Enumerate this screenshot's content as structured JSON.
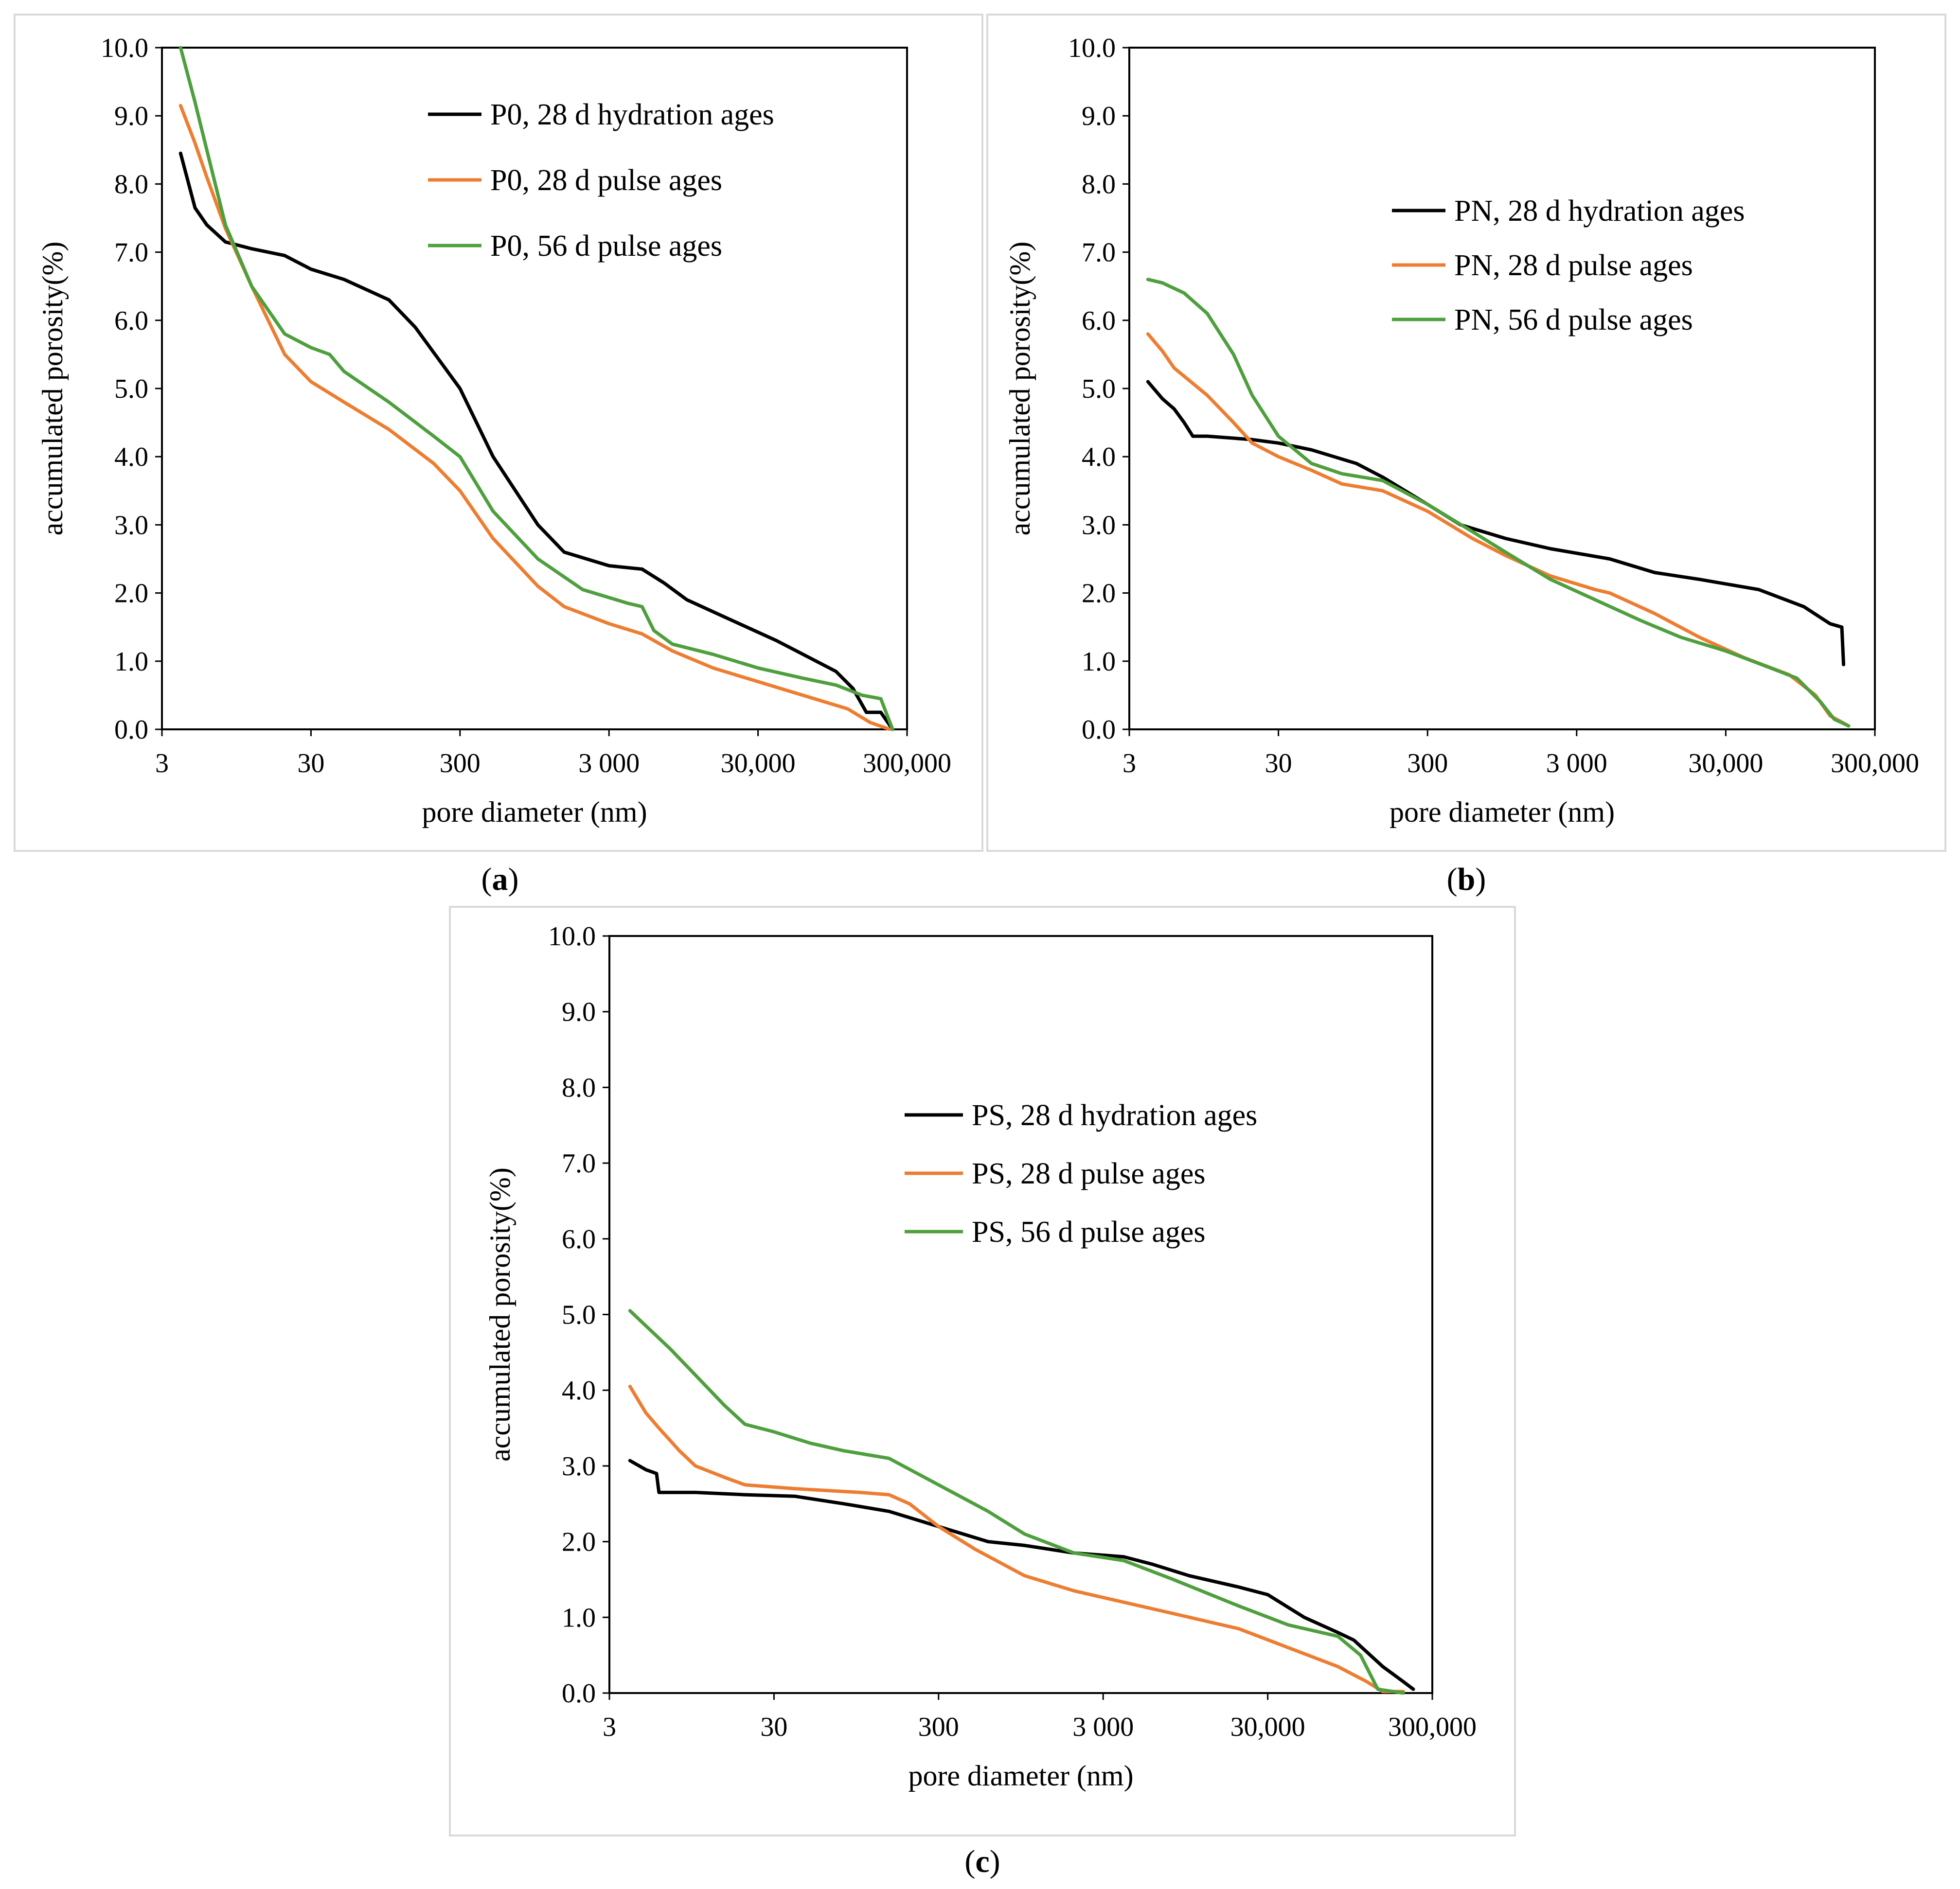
{
  "chart_data": [
    {
      "panel_label": "a",
      "type": "line",
      "xlabel": "pore diameter (nm)",
      "ylabel": "accumulated porosity(%)",
      "x_scale": "log",
      "xlim": [
        3,
        300000
      ],
      "ylim": [
        0,
        10
      ],
      "x_ticks": [
        3,
        30,
        300,
        3000,
        30000,
        300000
      ],
      "x_tick_labels": [
        "3",
        "30",
        "300",
        "3 000",
        "30,000",
        "300,000"
      ],
      "y_ticks": [
        0,
        1,
        2,
        3,
        4,
        5,
        6,
        7,
        8,
        9,
        10
      ],
      "y_tick_labels": [
        "0.0",
        "1.0",
        "2.0",
        "3.0",
        "4.0",
        "5.0",
        "6.0",
        "7.0",
        "8.0",
        "9.0",
        "10.0"
      ],
      "grid": false,
      "legend_position": "top-right",
      "series": [
        {
          "name": "P0, 28 d hydration ages",
          "color": "#000000",
          "points": [
            [
              4,
              8.45
            ],
            [
              5,
              7.65
            ],
            [
              6,
              7.4
            ],
            [
              8,
              7.15
            ],
            [
              12,
              7.05
            ],
            [
              20,
              6.95
            ],
            [
              30,
              6.75
            ],
            [
              50,
              6.6
            ],
            [
              100,
              6.3
            ],
            [
              150,
              5.9
            ],
            [
              300,
              5.0
            ],
            [
              500,
              4.0
            ],
            [
              1000,
              3.0
            ],
            [
              1500,
              2.6
            ],
            [
              3000,
              2.4
            ],
            [
              5000,
              2.35
            ],
            [
              7000,
              2.15
            ],
            [
              10000,
              1.9
            ],
            [
              20000,
              1.6
            ],
            [
              40000,
              1.3
            ],
            [
              100000,
              0.85
            ],
            [
              130000,
              0.6
            ],
            [
              160000,
              0.25
            ],
            [
              200000,
              0.25
            ],
            [
              240000,
              0.0
            ]
          ]
        },
        {
          "name": "P0, 28 d pulse ages",
          "color": "#ED7D31",
          "points": [
            [
              4,
              9.15
            ],
            [
              5,
              8.6
            ],
            [
              6,
              8.1
            ],
            [
              8,
              7.35
            ],
            [
              12,
              6.5
            ],
            [
              20,
              5.5
            ],
            [
              30,
              5.1
            ],
            [
              50,
              4.8
            ],
            [
              100,
              4.4
            ],
            [
              200,
              3.9
            ],
            [
              300,
              3.5
            ],
            [
              500,
              2.8
            ],
            [
              1000,
              2.1
            ],
            [
              1500,
              1.8
            ],
            [
              3000,
              1.55
            ],
            [
              5000,
              1.4
            ],
            [
              8000,
              1.15
            ],
            [
              15000,
              0.9
            ],
            [
              30000,
              0.7
            ],
            [
              60000,
              0.5
            ],
            [
              120000,
              0.3
            ],
            [
              170000,
              0.1
            ],
            [
              230000,
              0.0
            ]
          ]
        },
        {
          "name": "P0, 56 d pulse ages",
          "color": "#4E9F3D",
          "points": [
            [
              4,
              10.0
            ],
            [
              5,
              9.2
            ],
            [
              6,
              8.5
            ],
            [
              8,
              7.4
            ],
            [
              12,
              6.5
            ],
            [
              20,
              5.8
            ],
            [
              30,
              5.6
            ],
            [
              40,
              5.5
            ],
            [
              50,
              5.25
            ],
            [
              100,
              4.8
            ],
            [
              200,
              4.3
            ],
            [
              300,
              4.0
            ],
            [
              500,
              3.2
            ],
            [
              1000,
              2.5
            ],
            [
              2000,
              2.05
            ],
            [
              4000,
              1.85
            ],
            [
              5000,
              1.8
            ],
            [
              6000,
              1.45
            ],
            [
              8000,
              1.25
            ],
            [
              15000,
              1.1
            ],
            [
              30000,
              0.9
            ],
            [
              60000,
              0.75
            ],
            [
              100000,
              0.65
            ],
            [
              150000,
              0.5
            ],
            [
              200000,
              0.45
            ],
            [
              240000,
              0.0
            ]
          ]
        }
      ]
    },
    {
      "panel_label": "b",
      "type": "line",
      "xlabel": "pore diameter (nm)",
      "ylabel": "accumulated porosity(%)",
      "x_scale": "log",
      "xlim": [
        3,
        300000
      ],
      "ylim": [
        0,
        10
      ],
      "x_ticks": [
        3,
        30,
        300,
        3000,
        30000,
        300000
      ],
      "x_tick_labels": [
        "3",
        "30",
        "300",
        "3 000",
        "30,000",
        "300,000"
      ],
      "y_ticks": [
        0,
        1,
        2,
        3,
        4,
        5,
        6,
        7,
        8,
        9,
        10
      ],
      "y_tick_labels": [
        "0.0",
        "1.0",
        "2.0",
        "3.0",
        "4.0",
        "5.0",
        "6.0",
        "7.0",
        "8.0",
        "9.0",
        "10.0"
      ],
      "grid": false,
      "legend_position": "top-right",
      "series": [
        {
          "name": "PN, 28 d hydration ages",
          "color": "#000000",
          "points": [
            [
              4,
              5.1
            ],
            [
              5,
              4.85
            ],
            [
              6,
              4.7
            ],
            [
              7,
              4.5
            ],
            [
              8,
              4.3
            ],
            [
              10,
              4.3
            ],
            [
              20,
              4.25
            ],
            [
              30,
              4.2
            ],
            [
              50,
              4.1
            ],
            [
              100,
              3.9
            ],
            [
              150,
              3.7
            ],
            [
              300,
              3.3
            ],
            [
              500,
              3.0
            ],
            [
              1000,
              2.8
            ],
            [
              2000,
              2.65
            ],
            [
              5000,
              2.5
            ],
            [
              10000,
              2.3
            ],
            [
              20000,
              2.2
            ],
            [
              50000,
              2.05
            ],
            [
              100000,
              1.8
            ],
            [
              150000,
              1.55
            ],
            [
              180000,
              1.5
            ],
            [
              185000,
              0.95
            ]
          ]
        },
        {
          "name": "PN, 28 d pulse ages",
          "color": "#ED7D31",
          "points": [
            [
              4,
              5.8
            ],
            [
              5,
              5.55
            ],
            [
              6,
              5.3
            ],
            [
              10,
              4.9
            ],
            [
              15,
              4.5
            ],
            [
              20,
              4.2
            ],
            [
              30,
              4.0
            ],
            [
              50,
              3.8
            ],
            [
              80,
              3.6
            ],
            [
              150,
              3.5
            ],
            [
              300,
              3.2
            ],
            [
              600,
              2.8
            ],
            [
              1000,
              2.55
            ],
            [
              2000,
              2.25
            ],
            [
              4000,
              2.05
            ],
            [
              5000,
              2.0
            ],
            [
              10000,
              1.7
            ],
            [
              20000,
              1.35
            ],
            [
              40000,
              1.05
            ],
            [
              80000,
              0.8
            ],
            [
              120000,
              0.5
            ],
            [
              150000,
              0.2
            ],
            [
              200000,
              0.05
            ]
          ]
        },
        {
          "name": "PN, 56 d pulse ages",
          "color": "#4E9F3D",
          "points": [
            [
              4,
              6.6
            ],
            [
              5,
              6.55
            ],
            [
              7,
              6.4
            ],
            [
              10,
              6.1
            ],
            [
              15,
              5.5
            ],
            [
              20,
              4.9
            ],
            [
              30,
              4.3
            ],
            [
              50,
              3.9
            ],
            [
              80,
              3.75
            ],
            [
              150,
              3.65
            ],
            [
              300,
              3.3
            ],
            [
              600,
              2.9
            ],
            [
              1000,
              2.6
            ],
            [
              2000,
              2.2
            ],
            [
              4000,
              1.9
            ],
            [
              8000,
              1.6
            ],
            [
              15000,
              1.35
            ],
            [
              30000,
              1.15
            ],
            [
              60000,
              0.9
            ],
            [
              90000,
              0.75
            ],
            [
              130000,
              0.4
            ],
            [
              160000,
              0.15
            ],
            [
              200000,
              0.05
            ]
          ]
        }
      ]
    },
    {
      "panel_label": "c",
      "type": "line",
      "xlabel": "pore diameter (nm)",
      "ylabel": "accumulated porosity(%)",
      "x_scale": "log",
      "xlim": [
        3,
        300000
      ],
      "ylim": [
        0,
        10
      ],
      "x_ticks": [
        3,
        30,
        300,
        3000,
        30000,
        300000
      ],
      "x_tick_labels": [
        "3",
        "30",
        "300",
        "3 000",
        "30,000",
        "300,000"
      ],
      "y_ticks": [
        0,
        1,
        2,
        3,
        4,
        5,
        6,
        7,
        8,
        9,
        10
      ],
      "y_tick_labels": [
        "0.0",
        "1.0",
        "2.0",
        "3.0",
        "4.0",
        "5.0",
        "6.0",
        "7.0",
        "8.0",
        "9.0",
        "10.0"
      ],
      "grid": false,
      "legend_position": "upper-middle",
      "series": [
        {
          "name": "PS, 28 d hydration ages",
          "color": "#000000",
          "points": [
            [
              4,
              3.07
            ],
            [
              5,
              2.95
            ],
            [
              5.8,
              2.9
            ],
            [
              6,
              2.65
            ],
            [
              10,
              2.65
            ],
            [
              20,
              2.62
            ],
            [
              40,
              2.6
            ],
            [
              80,
              2.5
            ],
            [
              150,
              2.4
            ],
            [
              300,
              2.2
            ],
            [
              600,
              2.0
            ],
            [
              1000,
              1.95
            ],
            [
              2000,
              1.85
            ],
            [
              4000,
              1.8
            ],
            [
              6000,
              1.7
            ],
            [
              10000,
              1.55
            ],
            [
              20000,
              1.4
            ],
            [
              30000,
              1.3
            ],
            [
              50000,
              1.0
            ],
            [
              80000,
              0.8
            ],
            [
              100000,
              0.7
            ],
            [
              150000,
              0.35
            ],
            [
              200000,
              0.15
            ],
            [
              230000,
              0.05
            ]
          ]
        },
        {
          "name": "PS, 28 d pulse ages",
          "color": "#ED7D31",
          "points": [
            [
              4,
              4.05
            ],
            [
              5,
              3.7
            ],
            [
              6,
              3.5
            ],
            [
              8,
              3.2
            ],
            [
              10,
              3.0
            ],
            [
              15,
              2.85
            ],
            [
              20,
              2.75
            ],
            [
              40,
              2.7
            ],
            [
              100,
              2.65
            ],
            [
              150,
              2.62
            ],
            [
              200,
              2.5
            ],
            [
              300,
              2.2
            ],
            [
              500,
              1.9
            ],
            [
              1000,
              1.55
            ],
            [
              2000,
              1.35
            ],
            [
              4000,
              1.2
            ],
            [
              8000,
              1.05
            ],
            [
              20000,
              0.85
            ],
            [
              40000,
              0.6
            ],
            [
              80000,
              0.35
            ],
            [
              120000,
              0.15
            ],
            [
              150000,
              0.02
            ],
            [
              200000,
              0.02
            ]
          ]
        },
        {
          "name": "PS, 56 d pulse ages",
          "color": "#4E9F3D",
          "points": [
            [
              4,
              5.05
            ],
            [
              5,
              4.85
            ],
            [
              7,
              4.55
            ],
            [
              10,
              4.2
            ],
            [
              15,
              3.8
            ],
            [
              20,
              3.55
            ],
            [
              30,
              3.45
            ],
            [
              50,
              3.3
            ],
            [
              80,
              3.2
            ],
            [
              150,
              3.1
            ],
            [
              300,
              2.75
            ],
            [
              600,
              2.4
            ],
            [
              1000,
              2.1
            ],
            [
              2000,
              1.85
            ],
            [
              4000,
              1.75
            ],
            [
              8000,
              1.5
            ],
            [
              20000,
              1.15
            ],
            [
              40000,
              0.9
            ],
            [
              80000,
              0.75
            ],
            [
              110000,
              0.5
            ],
            [
              140000,
              0.05
            ],
            [
              200000,
              0.0
            ]
          ]
        }
      ]
    }
  ]
}
